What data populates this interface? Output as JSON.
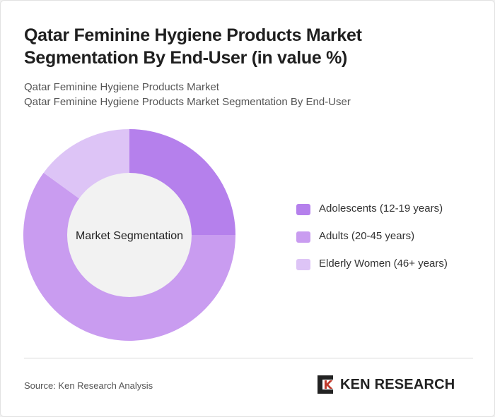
{
  "title": "Qatar Feminine Hygiene Products Market Segmentation By End-User (in value %)",
  "subtitle_line1": "Qatar Feminine Hygiene Products Market",
  "subtitle_line2": "Qatar Feminine Hygiene Products Market Segmentation By End-User",
  "chart_data": {
    "type": "pie",
    "variant": "donut",
    "center_label": "Market Segmentation",
    "categories": [
      "Adolescents (12-19 years)",
      "Adults (20-45 years)",
      "Elderly Women (46+ years)"
    ],
    "values": [
      25,
      60,
      15
    ],
    "colors": [
      "#b580ec",
      "#c99cf0",
      "#ddc4f6"
    ],
    "center_color": "#f2f2f2",
    "legend_position": "right"
  },
  "footer": {
    "source": "Source: Ken Research Analysis",
    "brand": "KEN RESEARCH",
    "brand_icon": "ken-research-logo-icon"
  }
}
